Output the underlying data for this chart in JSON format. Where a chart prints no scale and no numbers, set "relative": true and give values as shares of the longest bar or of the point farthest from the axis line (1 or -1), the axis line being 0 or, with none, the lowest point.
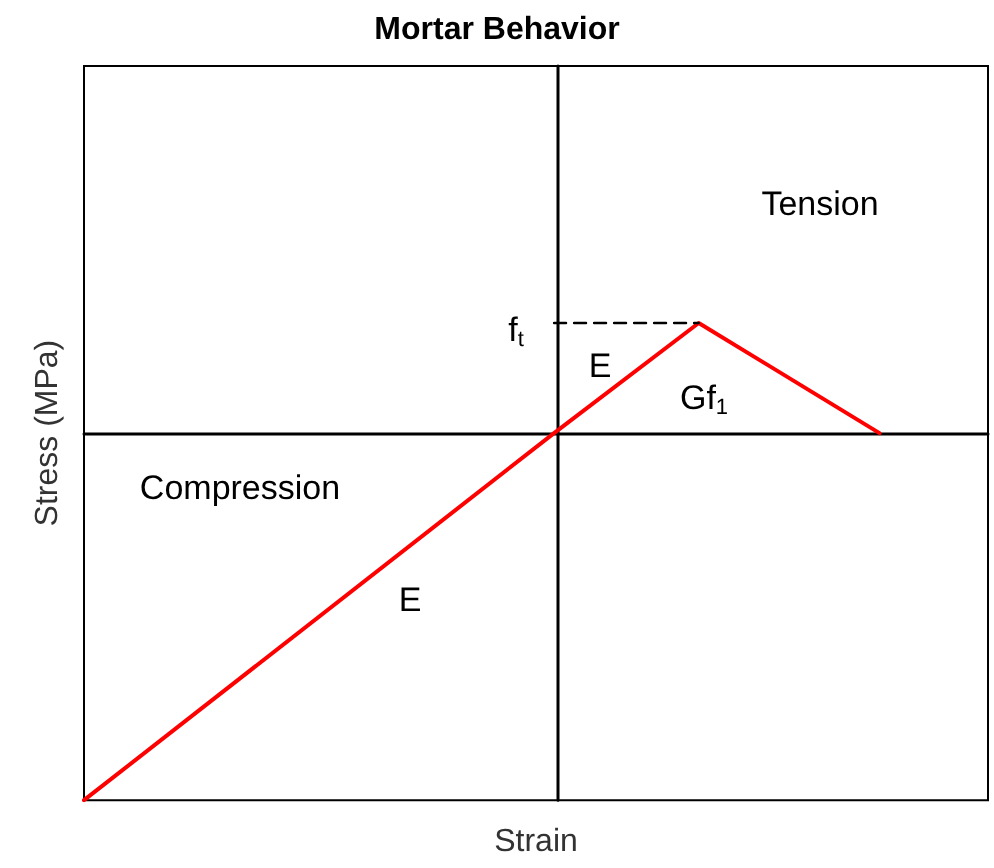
{
  "chart_data": {
    "type": "line",
    "title": "Mortar Behavior",
    "xlabel": "Strain",
    "ylabel": "Stress (MPa)",
    "relative": true,
    "grid": false,
    "marker": "none",
    "categories": [
      null,
      null,
      null,
      null,
      null,
      null,
      null,
      null,
      null,
      null,
      null,
      null,
      null,
      null,
      null,
      null,
      null,
      null,
      null,
      null,
      null,
      null,
      null,
      null,
      null,
      null
    ],
    "series": [
      {
        "color": "#ff0000",
        "values": [
          -1,
          null,
          null,
          null,
          null,
          null,
          null,
          null,
          null,
          null,
          null,
          null,
          null,
          0,
          null,
          null,
          null,
          0.3,
          null,
          null,
          null,
          null,
          0,
          null,
          null,
          null
        ],
        "line_style": "solid"
      },
      {
        "color": "#000000",
        "values": [
          null,
          null,
          null,
          null,
          null,
          null,
          null,
          null,
          null,
          null,
          null,
          null,
          null,
          0.3,
          null,
          null,
          null,
          0.3,
          null,
          null,
          null,
          null,
          null,
          null,
          null,
          null
        ],
        "line_style": "dashed"
      }
    ],
    "annotations": [
      "Tension",
      "Compression",
      "f$_{t}$",
      "E",
      "Gf$_{1}$",
      "E"
    ]
  }
}
